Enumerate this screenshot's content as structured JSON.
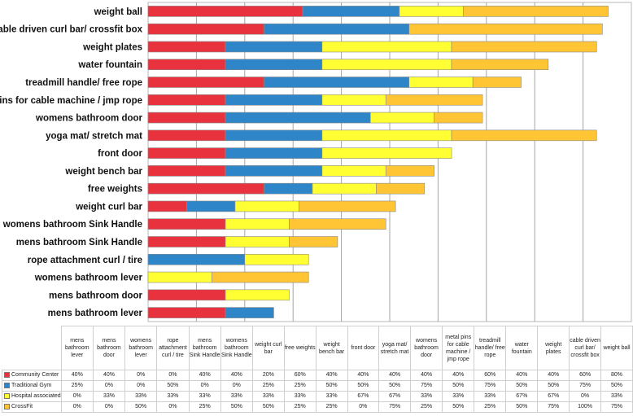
{
  "chart_data": {
    "type": "bar",
    "orientation": "horizontal",
    "stacked": true,
    "grid": true,
    "legend_position": "table-below",
    "categories": [
      "weight ball",
      "cable driven curl bar/ crossfit box",
      "weight plates",
      "water fountain",
      "treadmill handle/ free rope",
      "metal pins for cable machine / jmp rope",
      "womens bathroom door",
      "yoga mat/ stretch mat",
      "front door",
      "weight bench bar",
      "free weights",
      "weight curl bar",
      "womens bathroom Sink Handle",
      "mens bathroom Sink Handle",
      "rope attachment curl / tire",
      "womens bathroom lever",
      "mens bathroom door",
      "mens bathroom lever"
    ],
    "series": [
      {
        "name": "Community Center",
        "color": "#e8323e",
        "values": [
          80,
          60,
          40,
          40,
          60,
          40,
          40,
          40,
          40,
          40,
          60,
          20,
          40,
          40,
          0,
          0,
          40,
          40
        ]
      },
      {
        "name": "Traditional Gym",
        "color": "#2e86c8",
        "values": [
          50,
          75,
          50,
          50,
          75,
          50,
          75,
          50,
          50,
          50,
          25,
          25,
          0,
          0,
          50,
          0,
          0,
          25
        ]
      },
      {
        "name": "Hospital associated",
        "color": "#ffff33",
        "values": [
          33,
          0,
          67,
          67,
          33,
          33,
          33,
          67,
          67,
          33,
          33,
          33,
          33,
          33,
          33,
          33,
          33,
          0
        ]
      },
      {
        "name": "CrossFit",
        "color": "#ffc534",
        "values": [
          75,
          100,
          75,
          50,
          25,
          50,
          25,
          75,
          0,
          25,
          25,
          50,
          50,
          25,
          0,
          50,
          0,
          0
        ]
      }
    ],
    "xlim": [
      0,
      250
    ],
    "table_columns": [
      "mens bathroom lever",
      "mens bathroom door",
      "womens bathroom lever",
      "rope attachment curl / tire",
      "mens bathroom Sink Handle",
      "womens bathroom Sink Handle",
      "weight curl bar",
      "free weights",
      "weight bench bar",
      "front door",
      "yoga mat/ stretch mat",
      "womens bathroom door",
      "metal pins for cable machine / jmp rope",
      "treadmill handle/ free rope",
      "water fountain",
      "weight plates",
      "cable driven curl bar/ crossfit box",
      "weight ball"
    ],
    "table_rows": [
      {
        "name": "Community Center",
        "values": [
          "40%",
          "40%",
          "0%",
          "0%",
          "40%",
          "40%",
          "20%",
          "60%",
          "40%",
          "40%",
          "40%",
          "40%",
          "40%",
          "60%",
          "40%",
          "40%",
          "60%",
          "80%"
        ]
      },
      {
        "name": "Traditional Gym",
        "values": [
          "25%",
          "0%",
          "0%",
          "50%",
          "0%",
          "0%",
          "25%",
          "25%",
          "50%",
          "50%",
          "50%",
          "75%",
          "50%",
          "75%",
          "50%",
          "50%",
          "75%",
          "50%"
        ]
      },
      {
        "name": "Hospital associated",
        "values": [
          "0%",
          "33%",
          "33%",
          "33%",
          "33%",
          "33%",
          "33%",
          "33%",
          "33%",
          "67%",
          "67%",
          "33%",
          "33%",
          "33%",
          "67%",
          "67%",
          "0%",
          "33%"
        ]
      },
      {
        "name": "CrossFit",
        "values": [
          "0%",
          "0%",
          "50%",
          "0%",
          "25%",
          "50%",
          "50%",
          "25%",
          "25%",
          "0%",
          "75%",
          "25%",
          "50%",
          "25%",
          "50%",
          "75%",
          "100%",
          "75%"
        ]
      }
    ]
  }
}
